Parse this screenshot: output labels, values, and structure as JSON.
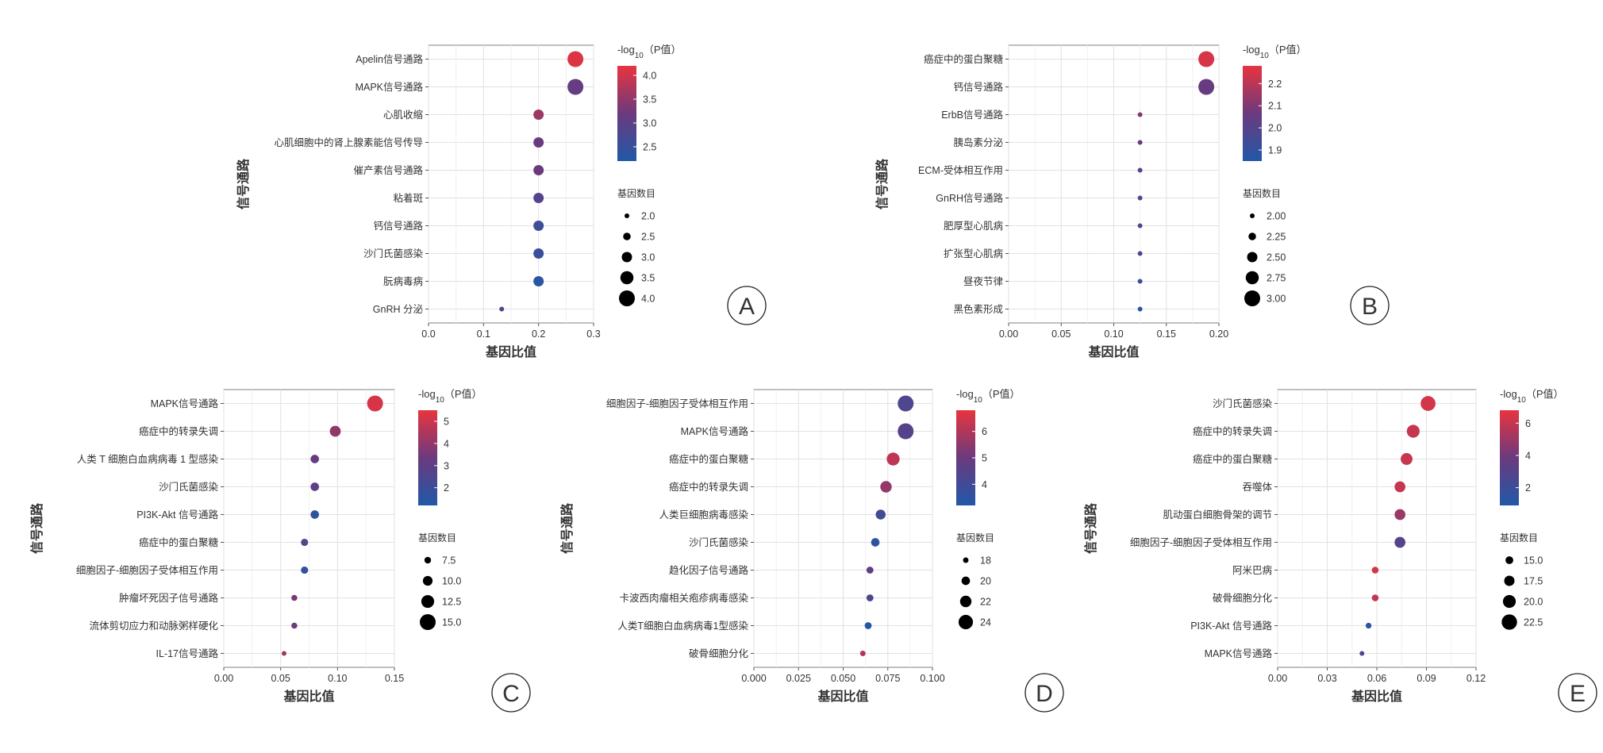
{
  "figure": {
    "x_axis_title": "基因比值",
    "y_axis_title": "信号通路",
    "legend_color_title": "-log10（P值）",
    "legend_size_title": "基因数目",
    "color_low": "#2158a8",
    "color_mid": "#6b3a7e",
    "color_high": "#e8343e"
  },
  "chart_data": [
    {
      "id": "A",
      "type": "scatter",
      "panel_label": "A",
      "xlabel": "基因比值",
      "ylabel": "信号通路",
      "xlim": [
        0,
        0.3
      ],
      "xticks": [
        0.0,
        0.1,
        0.2,
        0.3
      ],
      "xtick_labels": [
        "0.0",
        "0.1",
        "0.2",
        "0.3"
      ],
      "categories": [
        "Apelin信号通路",
        "MAPK信号通路",
        "心肌收缩",
        "心肌细胞中的肾上腺素能信号传导",
        "催产素信号通路",
        "粘着斑",
        "钙信号通路",
        "沙门氏菌感染",
        "朊病毒病",
        "GnRH 分泌"
      ],
      "x": [
        0.267,
        0.267,
        0.2,
        0.2,
        0.2,
        0.2,
        0.2,
        0.2,
        0.2,
        0.133
      ],
      "size": [
        4,
        4,
        3,
        3,
        3,
        3,
        3,
        3,
        3,
        2
      ],
      "color": [
        4.1,
        3.1,
        3.6,
        3.2,
        3.2,
        2.9,
        2.6,
        2.55,
        2.3,
        2.8
      ],
      "color_range": [
        2.2,
        4.2
      ],
      "color_ticks": [
        2.5,
        3.0,
        3.5,
        4.0
      ],
      "color_tick_labels": [
        "2.5",
        "3.0",
        "3.5",
        "4.0"
      ],
      "size_range": [
        2,
        4
      ],
      "size_legend": [
        2.0,
        2.5,
        3.0,
        3.5,
        4.0
      ],
      "size_legend_labels": [
        "2.0",
        "2.5",
        "3.0",
        "3.5",
        "4.0"
      ]
    },
    {
      "id": "B",
      "type": "scatter",
      "panel_label": "B",
      "xlabel": "基因比值",
      "ylabel": "信号通路",
      "xlim": [
        0,
        0.2
      ],
      "xticks": [
        0.0,
        0.05,
        0.1,
        0.15,
        0.2
      ],
      "xtick_labels": [
        "0.00",
        "0.05",
        "0.10",
        "0.15",
        "0.20"
      ],
      "categories": [
        "癌症中的蛋白聚糖",
        "钙信号通路",
        "ErbB信号通路",
        "胰岛素分泌",
        "ECM-受体相互作用",
        "GnRH信号通路",
        "肥厚型心肌病",
        "扩张型心肌病",
        "昼夜节律",
        "黑色素形成"
      ],
      "x": [
        0.188,
        0.188,
        0.125,
        0.125,
        0.125,
        0.125,
        0.125,
        0.125,
        0.125,
        0.125
      ],
      "size": [
        3,
        3,
        2,
        2,
        2,
        2,
        2,
        2,
        2,
        2
      ],
      "color": [
        2.25,
        2.05,
        2.1,
        2.05,
        2.02,
        2.0,
        1.98,
        1.97,
        1.93,
        1.88
      ],
      "color_range": [
        1.85,
        2.28
      ],
      "color_ticks": [
        1.9,
        2.0,
        2.1,
        2.2
      ],
      "color_tick_labels": [
        "1.9",
        "2.0",
        "2.1",
        "2.2"
      ],
      "size_range": [
        2,
        3
      ],
      "size_legend": [
        2.0,
        2.25,
        2.5,
        2.75,
        3.0
      ],
      "size_legend_labels": [
        "2.00",
        "2.25",
        "2.50",
        "2.75",
        "3.00"
      ]
    },
    {
      "id": "C",
      "type": "scatter",
      "panel_label": "C",
      "xlabel": "基因比值",
      "ylabel": "信号通路",
      "xlim": [
        0,
        0.15
      ],
      "xticks": [
        0.0,
        0.05,
        0.1,
        0.15
      ],
      "xtick_labels": [
        "0.00",
        "0.05",
        "0.10",
        "0.15"
      ],
      "categories": [
        "MAPK信号通路",
        "癌症中的转录失调",
        "人类 T 细胞白血病病毒 1 型感染",
        "沙门氏菌感染",
        "PI3K-Akt 信号通路",
        "癌症中的蛋白聚糖",
        "细胞因子-细胞因子受体相互作用",
        "肿瘤坏死因子信号通路",
        "流体剪切应力和动脉粥样硬化",
        "IL-17信号通路"
      ],
      "x": [
        0.133,
        0.098,
        0.08,
        0.08,
        0.08,
        0.071,
        0.071,
        0.062,
        0.062,
        0.053
      ],
      "size": [
        15,
        11,
        9,
        9,
        9,
        8,
        8,
        7,
        7,
        6
      ],
      "color": [
        5.2,
        4.0,
        3.2,
        3.0,
        1.6,
        2.8,
        1.7,
        3.5,
        3.4,
        4.2
      ],
      "color_range": [
        1.2,
        5.5
      ],
      "color_ticks": [
        2,
        3,
        4,
        5
      ],
      "color_tick_labels": [
        "2",
        "3",
        "4",
        "5"
      ],
      "size_range": [
        6,
        15
      ],
      "size_legend": [
        7.5,
        10.0,
        12.5,
        15.0
      ],
      "size_legend_labels": [
        "7.5",
        "10.0",
        "12.5",
        "15.0"
      ]
    },
    {
      "id": "D",
      "type": "scatter",
      "panel_label": "D",
      "xlabel": "基因比值",
      "ylabel": "信号通路",
      "xlim": [
        0,
        0.1
      ],
      "xticks": [
        0.0,
        0.025,
        0.05,
        0.075,
        0.1
      ],
      "xtick_labels": [
        "0.000",
        "0.025",
        "0.050",
        "0.075",
        "0.100"
      ],
      "categories": [
        "细胞因子-细胞因子受体相互作用",
        "MAPK信号通路",
        "癌症中的蛋白聚糖",
        "癌症中的转录失调",
        "人类巨细胞病毒感染",
        "沙门氏菌感染",
        "趋化因子信号通路",
        "卡波西肉瘤相关疱疹病毒感染",
        "人类T细胞白血病病毒1型感染",
        "破骨细胞分化"
      ],
      "x": [
        0.085,
        0.085,
        0.078,
        0.074,
        0.071,
        0.068,
        0.065,
        0.065,
        0.064,
        0.061
      ],
      "size": [
        25,
        25,
        23,
        22,
        21,
        20,
        19,
        19,
        19,
        18
      ],
      "color": [
        4.3,
        4.5,
        6.2,
        5.6,
        4.0,
        3.5,
        4.7,
        4.2,
        3.3,
        6.0
      ],
      "color_range": [
        3.2,
        6.8
      ],
      "color_ticks": [
        4,
        5,
        6
      ],
      "color_tick_labels": [
        "4",
        "5",
        "6"
      ],
      "size_range": [
        17.5,
        25
      ],
      "size_legend": [
        18,
        20,
        22,
        24
      ],
      "size_legend_labels": [
        "18",
        "20",
        "22",
        "24"
      ]
    },
    {
      "id": "E",
      "type": "scatter",
      "panel_label": "E",
      "xlabel": "基因比值",
      "ylabel": "信号通路",
      "xlim": [
        0,
        0.12
      ],
      "xticks": [
        0.0,
        0.03,
        0.06,
        0.09,
        0.12
      ],
      "xtick_labels": [
        "0.00",
        "0.03",
        "0.06",
        "0.09",
        "0.12"
      ],
      "categories": [
        "沙门氏菌感染",
        "癌症中的转录失调",
        "癌症中的蛋白聚糖",
        "吞噬体",
        "肌动蛋白细胞骨架的调节",
        "细胞因子-细胞因子受体相互作用",
        "阿米巴病",
        "破骨细胞分化",
        "PI3K-Akt 信号通路",
        "MAPK信号通路"
      ],
      "x": [
        0.091,
        0.082,
        0.078,
        0.074,
        0.074,
        0.074,
        0.059,
        0.059,
        0.055,
        0.051
      ],
      "size": [
        22,
        20,
        19,
        18,
        18,
        18,
        14,
        14,
        13,
        12
      ],
      "color": [
        6.3,
        6.0,
        6.0,
        6.0,
        5.0,
        3.0,
        6.3,
        5.9,
        1.3,
        2.5
      ],
      "color_range": [
        0.9,
        6.8
      ],
      "color_ticks": [
        2,
        4,
        6
      ],
      "color_tick_labels": [
        "2",
        "4",
        "6"
      ],
      "size_range": [
        12,
        23
      ],
      "size_legend": [
        15.0,
        17.5,
        20.0,
        22.5
      ],
      "size_legend_labels": [
        "15.0",
        "17.5",
        "20.0",
        "22.5"
      ]
    }
  ]
}
